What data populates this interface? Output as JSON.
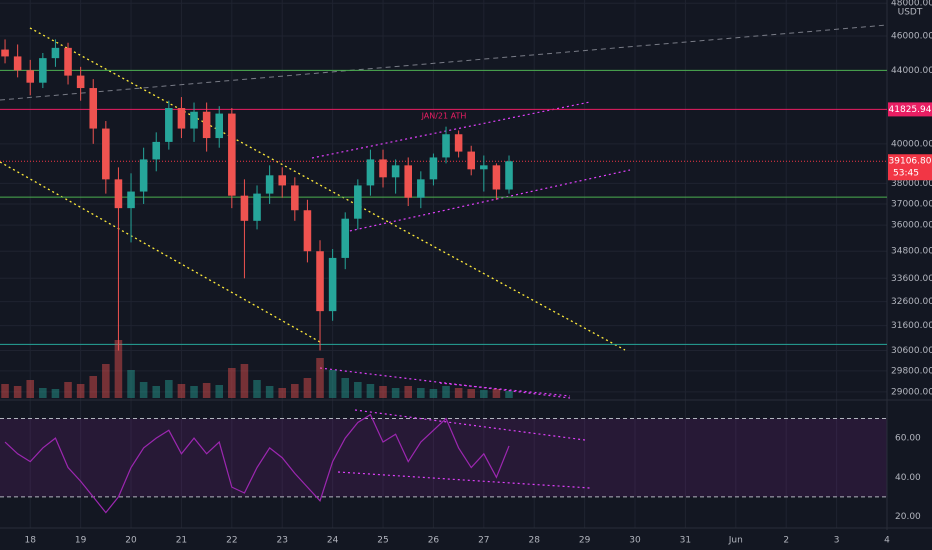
{
  "chart_data": {
    "type": "candlestick",
    "currency": "USDT",
    "annotation": "JAN/21 ATH",
    "log_scale": true,
    "grid": true,
    "up_color": "#26a69a",
    "down_color": "#ef5350",
    "x": [
      17.5,
      17.75,
      18,
      18.25,
      18.5,
      18.75,
      19,
      19.25,
      19.5,
      19.75,
      20,
      20.25,
      20.5,
      20.75,
      21,
      21.25,
      21.5,
      21.75,
      22,
      22.25,
      22.5,
      22.75,
      23,
      23.25,
      23.5,
      23.75,
      24,
      24.25,
      24.5,
      24.75,
      25,
      25.25,
      25.5,
      25.75,
      26,
      26.25,
      26.5,
      26.75,
      27,
      27.25,
      27.5
    ],
    "open": [
      45200,
      44800,
      44000,
      43300,
      44700,
      45300,
      43700,
      43000,
      40800,
      38200,
      36800,
      37600,
      39200,
      40100,
      41900,
      40800,
      41700,
      40300,
      41600,
      37400,
      36200,
      37500,
      38400,
      37900,
      36700,
      34800,
      32200,
      34500,
      36300,
      37900,
      39200,
      38300,
      38900,
      37300,
      38200,
      39300,
      40500,
      39600,
      38700,
      38900,
      37700
    ],
    "high": [
      45800,
      45500,
      44600,
      45000,
      45800,
      45600,
      44200,
      43500,
      41200,
      38800,
      38500,
      39800,
      40600,
      42300,
      42500,
      42200,
      42200,
      42000,
      41900,
      38200,
      37900,
      38900,
      38800,
      38300,
      37200,
      35300,
      34900,
      36600,
      38200,
      39700,
      39700,
      39200,
      39300,
      38600,
      39500,
      40900,
      40700,
      39900,
      39400,
      39000,
      39400
    ],
    "low": [
      44400,
      43600,
      42600,
      43000,
      44200,
      43200,
      42300,
      40000,
      37500,
      30600,
      35200,
      37000,
      38600,
      39700,
      40300,
      40100,
      39600,
      39800,
      36800,
      33600,
      35800,
      37000,
      37300,
      36200,
      34300,
      30600,
      31800,
      34000,
      35800,
      37400,
      37800,
      37500,
      36900,
      36800,
      37900,
      39000,
      39300,
      38400,
      37600,
      37200,
      37500
    ],
    "close": [
      44800,
      44000,
      43300,
      44700,
      45300,
      43700,
      43000,
      40800,
      38200,
      36800,
      37600,
      39200,
      40100,
      41900,
      40800,
      41700,
      40300,
      41600,
      37400,
      36200,
      37500,
      38400,
      37900,
      36700,
      34800,
      32200,
      34500,
      36300,
      37900,
      39200,
      38300,
      38900,
      37300,
      38200,
      39300,
      40500,
      39600,
      38700,
      38900,
      37700,
      39106.8
    ],
    "volume": [
      14,
      12,
      18,
      10,
      9,
      16,
      14,
      22,
      34,
      58,
      28,
      16,
      12,
      18,
      14,
      12,
      15,
      13,
      30,
      34,
      18,
      12,
      10,
      14,
      20,
      40,
      28,
      20,
      16,
      14,
      12,
      10,
      12,
      10,
      9,
      12,
      10,
      9,
      8,
      9,
      7
    ],
    "xlim": [
      17.4,
      35.0
    ],
    "xticks": [
      18,
      19,
      20,
      21,
      22,
      23,
      24,
      25,
      26,
      27,
      28,
      29,
      30,
      31,
      {
        "value": 32,
        "label": "Jun"
      },
      {
        "value": 33,
        "label": "2"
      },
      {
        "value": 34,
        "label": "3"
      },
      {
        "value": 35,
        "label": "4"
      }
    ],
    "ylim": [
      28770,
      48200
    ],
    "yticks": [
      {
        "value": 48000,
        "label": "48000.00"
      },
      {
        "value": 46000,
        "label": "46000.00"
      },
      {
        "value": 44000,
        "label": "44000.00"
      },
      {
        "value": 40000,
        "label": "40000.00"
      },
      {
        "value": 38000,
        "label": "38000.00"
      },
      {
        "value": 37000,
        "label": "37000.00"
      },
      {
        "value": 36000,
        "label": "36000.00"
      },
      {
        "value": 34800,
        "label": "34800.00"
      },
      {
        "value": 33600,
        "label": "33600.00"
      },
      {
        "value": 32600,
        "label": "32600.00"
      },
      {
        "value": 31600,
        "label": "31600.00"
      },
      {
        "value": 30600,
        "label": "30600.00"
      },
      {
        "value": 29800,
        "label": "29800.00"
      },
      {
        "value": 29000,
        "label": "29000.00"
      }
    ],
    "levels": [
      {
        "value": 44000,
        "color": "#4caf50"
      },
      {
        "value": 41825.94,
        "label": "41825.94",
        "color": "#e91e63"
      },
      {
        "value": 37330,
        "color": "#4caf50"
      },
      {
        "value": 30840,
        "color": "#26a69a"
      }
    ],
    "last_price": {
      "value": 39106.8,
      "label": "39106.80",
      "countdown": "53:45",
      "color": "#f23645"
    },
    "rsi": {
      "color": "#9c27b0",
      "values": [
        58,
        52,
        48,
        55,
        60,
        45,
        38,
        30,
        22,
        30,
        45,
        55,
        60,
        64,
        52,
        60,
        52,
        58,
        35,
        32,
        45,
        55,
        50,
        42,
        35,
        28,
        48,
        60,
        68,
        72,
        58,
        62,
        48,
        58,
        64,
        70,
        55,
        45,
        52,
        40,
        56
      ],
      "ylim": [
        17.2,
        76.9
      ],
      "yticks": [
        {
          "value": 60,
          "label": "60.00"
        },
        {
          "value": 40,
          "label": "40.00"
        },
        {
          "value": 20,
          "label": "20.00"
        }
      ],
      "bands": [
        70,
        30
      ]
    }
  }
}
